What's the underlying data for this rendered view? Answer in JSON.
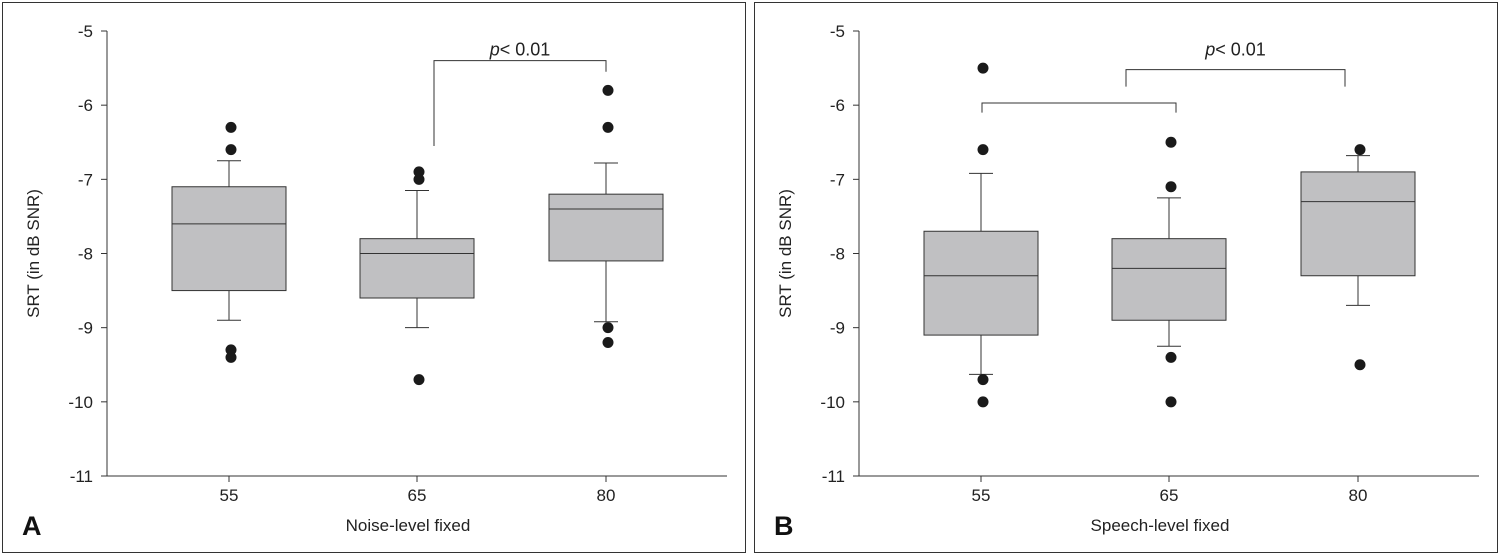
{
  "chart_data": [
    {
      "type": "box",
      "panel_label": "A",
      "xlabel": "Noise-level fixed",
      "ylabel": "SRT (in dB SNR)",
      "categories": [
        "55",
        "65",
        "80"
      ],
      "ylim": [
        -11,
        -5
      ],
      "yticks": [
        "-5",
        "-6",
        "-7",
        "-8",
        "-9",
        "-10",
        "-11"
      ],
      "grid": false,
      "boxes": [
        {
          "category": "55",
          "whisker_high": -6.75,
          "q3": -7.1,
          "median": -7.6,
          "q1": -8.5,
          "whisker_low": -8.9,
          "outliers": [
            -6.3,
            -6.6,
            -9.3,
            -9.4
          ]
        },
        {
          "category": "65",
          "whisker_high": -7.15,
          "q3": -7.8,
          "median": -8.0,
          "q1": -8.6,
          "whisker_low": -9.0,
          "outliers": [
            -6.9,
            -7.0,
            -9.7
          ]
        },
        {
          "category": "80",
          "whisker_high": -6.78,
          "q3": -7.2,
          "median": -7.4,
          "q1": -8.1,
          "whisker_low": -8.92,
          "outliers": [
            -5.8,
            -6.3,
            -9.0,
            -9.2
          ]
        }
      ],
      "annotations": [
        {
          "prefix": "p",
          "text": "< 0.01",
          "from": "65",
          "to": "80",
          "bracket_y": -5.4,
          "left_drop": -6.55,
          "right_drop": -5.55,
          "label_y": -5.25
        }
      ]
    },
    {
      "type": "box",
      "panel_label": "B",
      "xlabel": "Speech-level fixed",
      "ylabel": "SRT (in dB SNR)",
      "categories": [
        "55",
        "65",
        "80"
      ],
      "ylim": [
        -11,
        -5
      ],
      "yticks": [
        "-5",
        "-6",
        "-7",
        "-8",
        "-9",
        "-10",
        "-11"
      ],
      "grid": false,
      "boxes": [
        {
          "category": "55",
          "whisker_high": -6.92,
          "q3": -7.7,
          "median": -8.3,
          "q1": -9.1,
          "whisker_low": -9.63,
          "outliers": [
            -5.5,
            -6.6,
            -9.7,
            -10.0
          ]
        },
        {
          "category": "65",
          "whisker_high": -7.25,
          "q3": -7.8,
          "median": -8.2,
          "q1": -8.9,
          "whisker_low": -9.25,
          "outliers": [
            -6.5,
            -7.1,
            -9.4,
            -10.0
          ]
        },
        {
          "category": "80",
          "whisker_high": -6.68,
          "q3": -6.9,
          "median": -7.3,
          "q1": -8.3,
          "whisker_low": -8.7,
          "outliers": [
            -6.6,
            -9.5
          ]
        }
      ],
      "annotations": [
        {
          "prefix": "",
          "text": "",
          "from": "55",
          "to": "65",
          "bracket_y": -5.97,
          "left_drop": -6.1,
          "right_drop": -6.1,
          "label_y": null
        },
        {
          "prefix": "p",
          "text": "< 0.01",
          "from": "65",
          "to": "80",
          "bracket_y": -5.52,
          "left_drop": -5.75,
          "right_drop": -5.75,
          "label_y": -5.25
        }
      ]
    }
  ]
}
